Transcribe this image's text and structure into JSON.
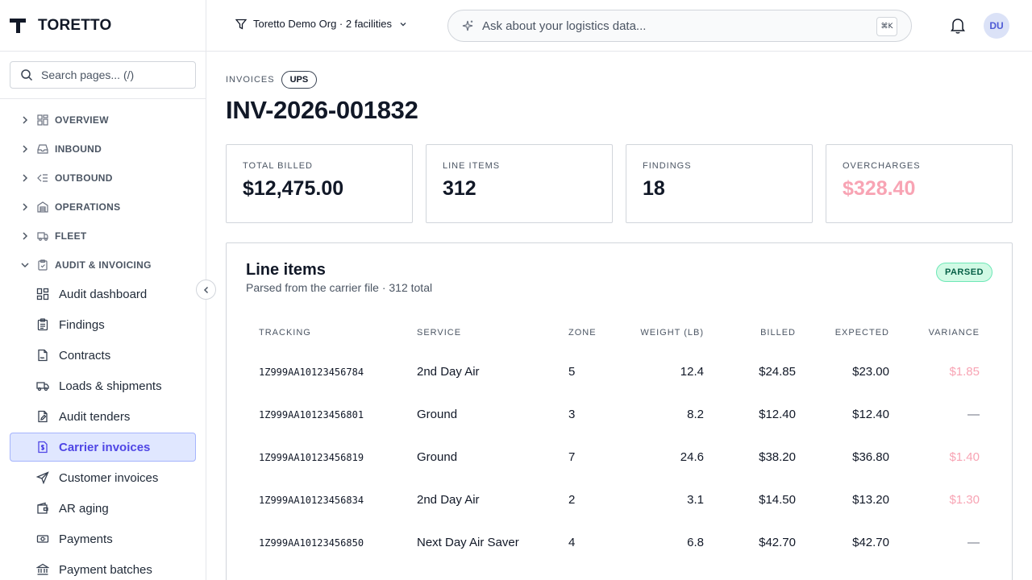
{
  "brand": {
    "name": "TORETTO"
  },
  "sidebar": {
    "search_placeholder": "Search pages...  (/)",
    "sections": [
      {
        "label": "OVERVIEW",
        "icon": "grid-icon"
      },
      {
        "label": "INBOUND",
        "icon": "inbox-icon"
      },
      {
        "label": "OUTBOUND",
        "icon": "outbound-icon"
      },
      {
        "label": "OPERATIONS",
        "icon": "warehouse-icon"
      },
      {
        "label": "FLEET",
        "icon": "truck-icon"
      },
      {
        "label": "AUDIT & INVOICING",
        "icon": "clipboard-icon"
      }
    ],
    "audit_items": [
      {
        "label": "Audit dashboard",
        "icon": "dashboard-icon"
      },
      {
        "label": "Findings",
        "icon": "clipboard-list-icon"
      },
      {
        "label": "Contracts",
        "icon": "file-signature-icon"
      },
      {
        "label": "Loads & shipments",
        "icon": "truck-icon"
      },
      {
        "label": "Audit tenders",
        "icon": "file-edit-icon"
      },
      {
        "label": "Carrier invoices",
        "icon": "invoice-dollar-icon",
        "active": true
      },
      {
        "label": "Customer invoices",
        "icon": "send-icon"
      },
      {
        "label": "AR aging",
        "icon": "wallet-icon"
      },
      {
        "label": "Payments",
        "icon": "banknote-icon"
      },
      {
        "label": "Payment batches",
        "icon": "bank-icon"
      }
    ]
  },
  "header": {
    "org": "Toretto Demo Org · 2 facilities",
    "ask_placeholder": "Ask about your logistics data...",
    "shortcut": "⌘K",
    "avatar": "DU"
  },
  "page": {
    "crumb": "INVOICES",
    "carrier_badge": "UPS",
    "title": "INV-2026-001832"
  },
  "stats": [
    {
      "label": "TOTAL BILLED",
      "value": "$12,475.00"
    },
    {
      "label": "LINE ITEMS",
      "value": "312"
    },
    {
      "label": "FINDINGS",
      "value": "18"
    },
    {
      "label": "OVERCHARGES",
      "value": "$328.40"
    }
  ],
  "line_items": {
    "title": "Line items",
    "subtitle": "Parsed from the carrier file · 312 total",
    "status": "PARSED",
    "columns": [
      "TRACKING",
      "SERVICE",
      "ZONE",
      "WEIGHT (LB)",
      "BILLED",
      "EXPECTED",
      "VARIANCE"
    ],
    "rows": [
      {
        "tracking": "1Z999AA10123456784",
        "service": "2nd Day Air",
        "zone": "5",
        "weight": "12.4",
        "billed": "$24.85",
        "expected": "$23.00",
        "variance": "$1.85"
      },
      {
        "tracking": "1Z999AA10123456801",
        "service": "Ground",
        "zone": "3",
        "weight": "8.2",
        "billed": "$12.40",
        "expected": "$12.40",
        "variance": "—"
      },
      {
        "tracking": "1Z999AA10123456819",
        "service": "Ground",
        "zone": "7",
        "weight": "24.6",
        "billed": "$38.20",
        "expected": "$36.80",
        "variance": "$1.40"
      },
      {
        "tracking": "1Z999AA10123456834",
        "service": "2nd Day Air",
        "zone": "2",
        "weight": "3.1",
        "billed": "$14.50",
        "expected": "$13.20",
        "variance": "$1.30"
      },
      {
        "tracking": "1Z999AA10123456850",
        "service": "Next Day Air Saver",
        "zone": "4",
        "weight": "6.8",
        "billed": "$42.70",
        "expected": "$42.70",
        "variance": "—"
      }
    ]
  },
  "colors": {
    "accent": "#4f46e5",
    "active_bg": "#e0e7ff",
    "overcharge": "#f8a4b4",
    "parsed_bg": "#d1fae5"
  }
}
